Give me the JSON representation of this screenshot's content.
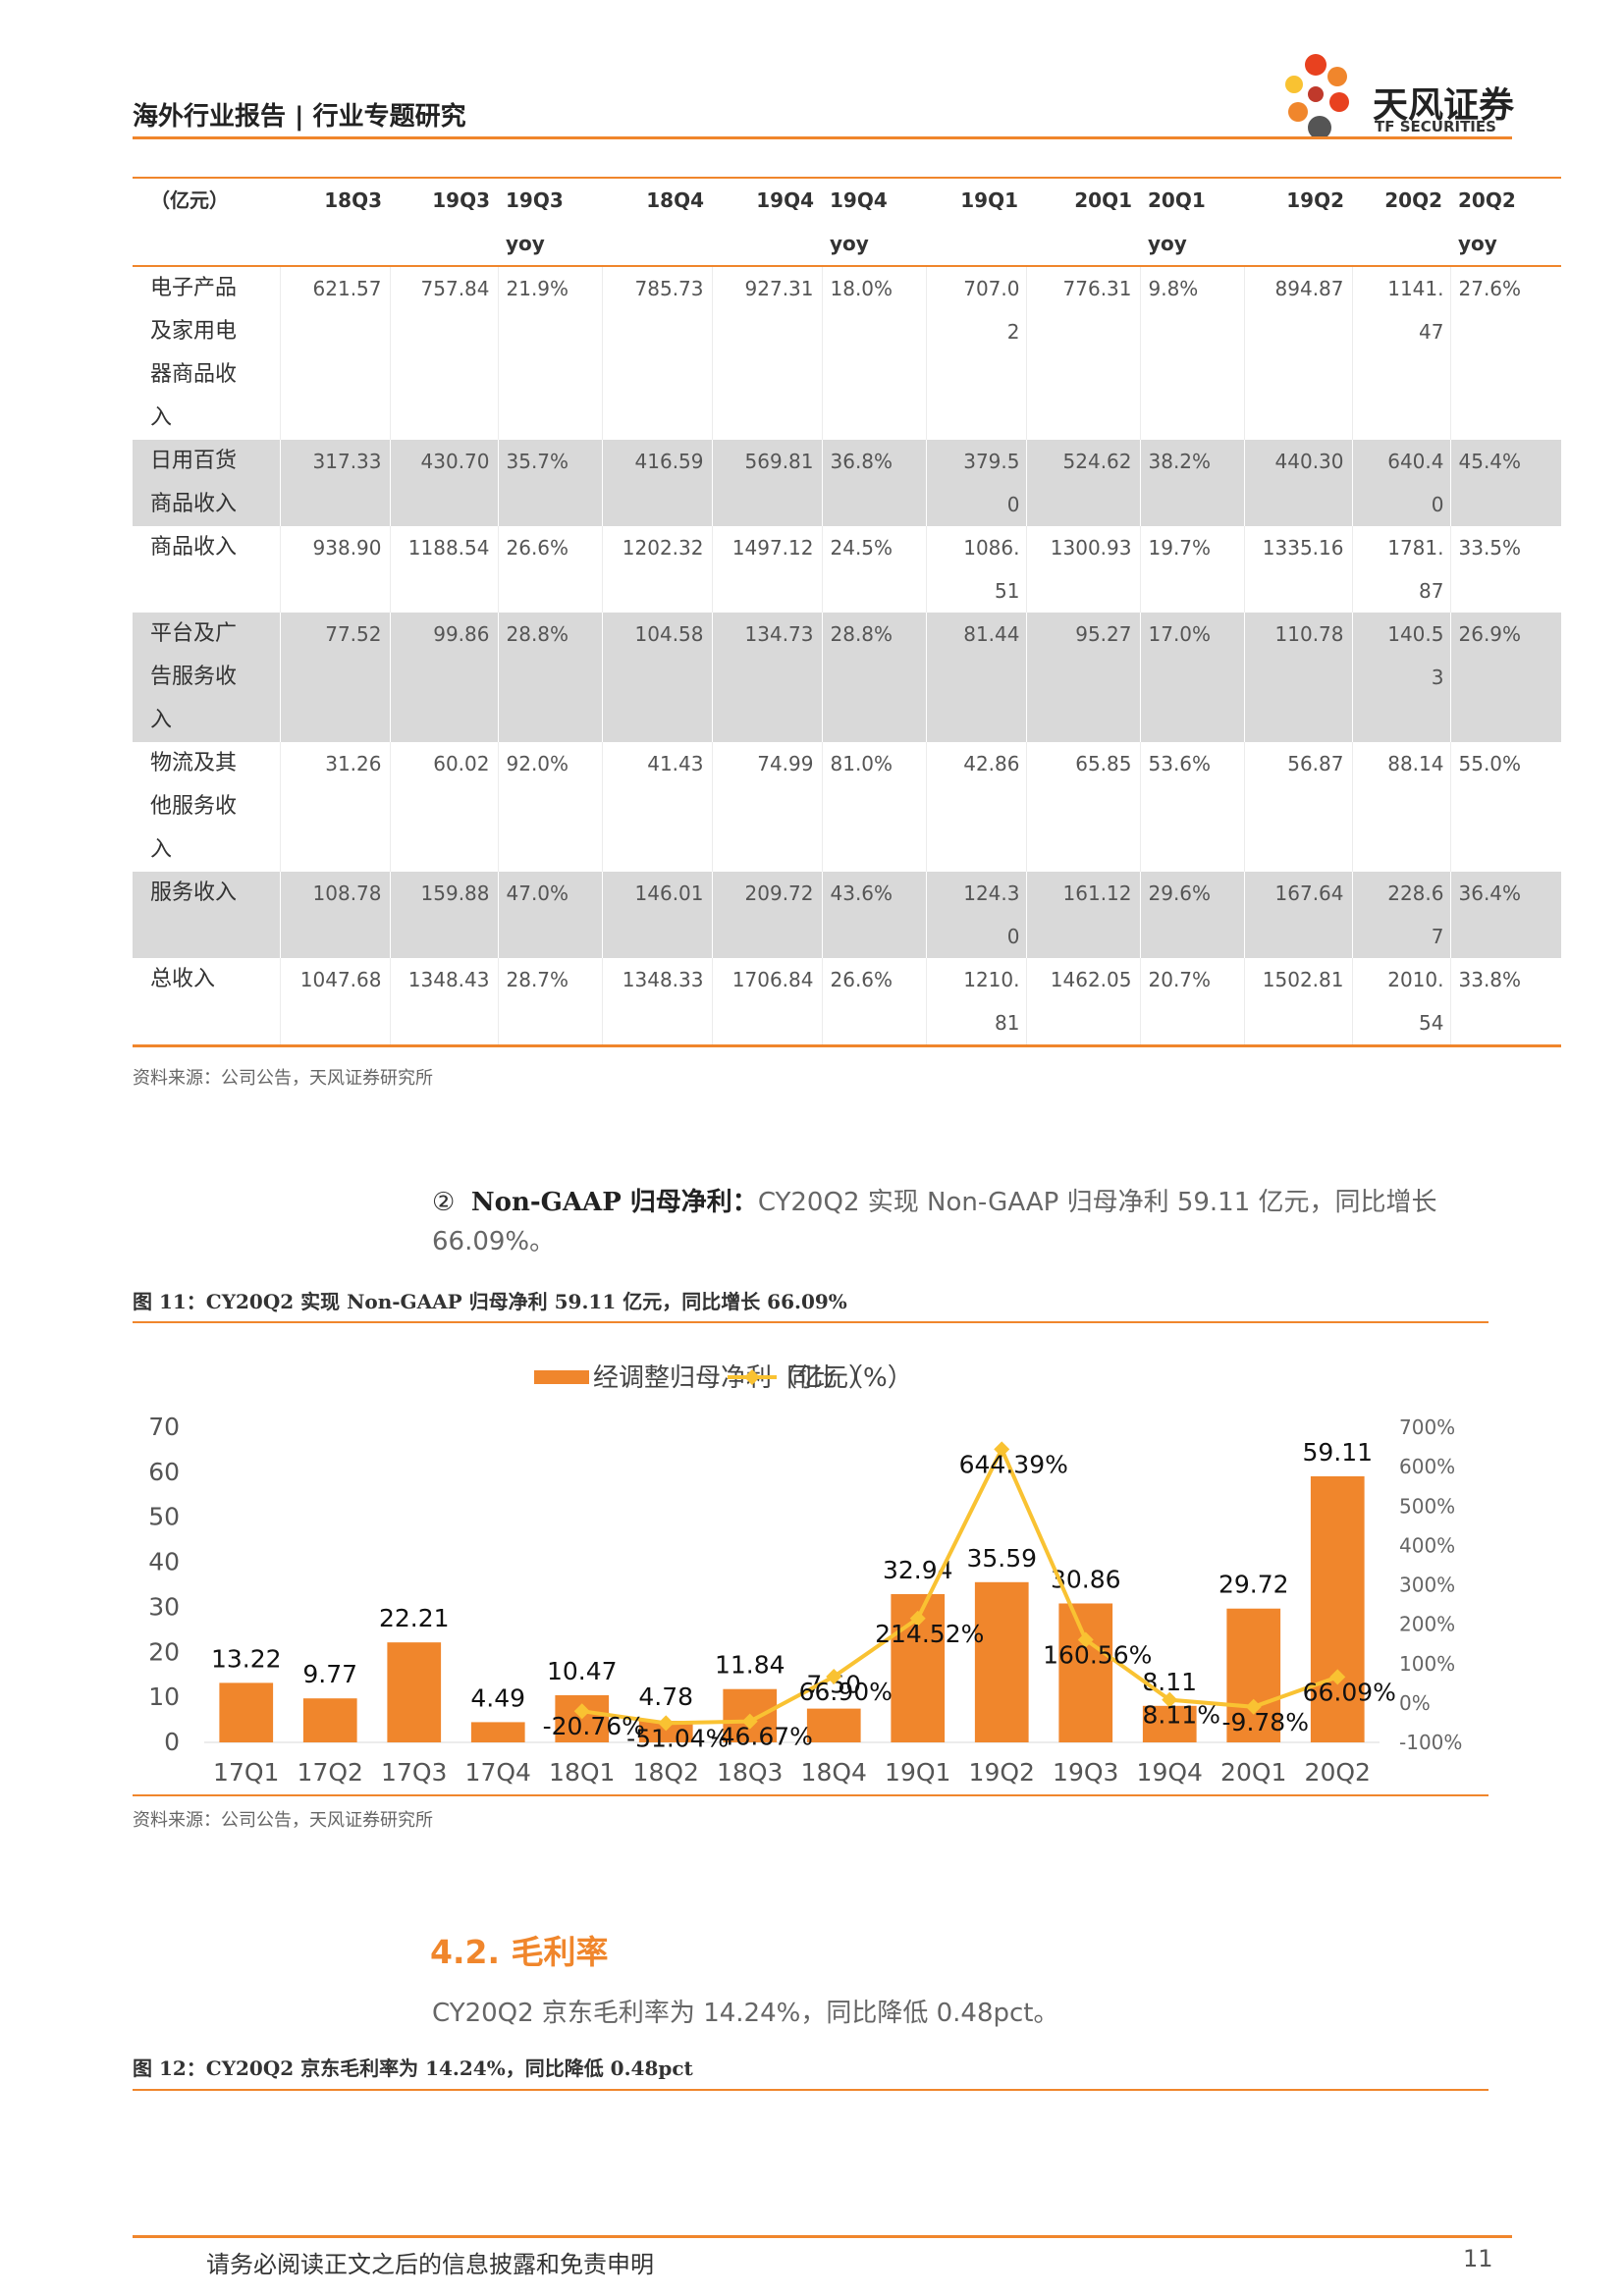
{
  "header": {
    "title": "海外行业报告 | 行业专题研究",
    "logo_name": "天风证券",
    "logo_sub": "TF SECURITIES"
  },
  "table": {
    "columns": [
      "（亿元）",
      "18Q3",
      "19Q3",
      "19Q3 yoy",
      "18Q4",
      "19Q4",
      "19Q4 yoy",
      "19Q1",
      "20Q1",
      "20Q1 yoy",
      "19Q2",
      "20Q2",
      "20Q2 yoy"
    ],
    "rows": [
      [
        "电子产品及家用电器商品收入",
        "621.57",
        "757.84",
        "21.9%",
        "785.73",
        "927.31",
        "18.0%",
        "707.02",
        "776.31",
        "9.8%",
        "894.87",
        "1141.47",
        "27.6%"
      ],
      [
        "日用百货商品收入",
        "317.33",
        "430.70",
        "35.7%",
        "416.59",
        "569.81",
        "36.8%",
        "379.50",
        "524.62",
        "38.2%",
        "440.30",
        "640.40",
        "45.4%"
      ],
      [
        "商品收入",
        "938.90",
        "1188.54",
        "26.6%",
        "1202.32",
        "1497.12",
        "24.5%",
        "1086.51",
        "1300.93",
        "19.7%",
        "1335.16",
        "1781.87",
        "33.5%"
      ],
      [
        "平台及广告服务收入",
        "77.52",
        "99.86",
        "28.8%",
        "104.58",
        "134.73",
        "28.8%",
        "81.44",
        "95.27",
        "17.0%",
        "110.78",
        "140.53",
        "26.9%"
      ],
      [
        "物流及其他服务收入",
        "31.26",
        "60.02",
        "92.0%",
        "41.43",
        "74.99",
        "81.0%",
        "42.86",
        "65.85",
        "53.6%",
        "56.87",
        "88.14",
        "55.0%"
      ],
      [
        "服务收入",
        "108.78",
        "159.88",
        "47.0%",
        "146.01",
        "209.72",
        "43.6%",
        "124.30",
        "161.12",
        "29.6%",
        "167.64",
        "228.67",
        "36.4%"
      ],
      [
        "总收入",
        "1047.68",
        "1348.43",
        "28.7%",
        "1348.33",
        "1706.84",
        "26.6%",
        "1210.81",
        "1462.05",
        "20.7%",
        "1502.81",
        "2010.54",
        "33.8%"
      ]
    ]
  },
  "table_source": "资料来源：公司公告，天风证券研究所",
  "paragraph1": {
    "marker": "②",
    "lead": "Non-GAAP 归母净利：",
    "text": "CY20Q2 实现 Non-GAAP 归母净利 59.11 亿元，同比增长 66.09%。"
  },
  "figure11_caption": "图 11：CY20Q2 实现 Non-GAAP 归母净利 59.11 亿元，同比增长 66.09%",
  "chart_data": {
    "type": "bar",
    "categories": [
      "17Q1",
      "17Q2",
      "17Q3",
      "17Q4",
      "18Q1",
      "18Q2",
      "18Q3",
      "18Q4",
      "19Q1",
      "19Q2",
      "19Q3",
      "19Q4",
      "20Q1",
      "20Q2"
    ],
    "series": [
      {
        "name": "经调整归母净利（亿元）",
        "type": "bar",
        "color": "#f0862c",
        "values": [
          13.22,
          9.77,
          22.21,
          4.49,
          10.47,
          4.78,
          11.84,
          7.5,
          32.94,
          35.59,
          30.86,
          8.11,
          29.72,
          59.11
        ],
        "value_labels": [
          "13.22",
          "9.77",
          "22.21",
          "4.49",
          "10.47",
          "4.78",
          "11.84",
          "7.50",
          "32.94",
          "35.59",
          "30.86",
          "8.11",
          "29.72",
          "59.11"
        ]
      },
      {
        "name": "同比（%）",
        "type": "line",
        "axis": "y2",
        "color": "#f9c232",
        "values": [
          null,
          null,
          null,
          null,
          -20.76,
          -51.04,
          -46.67,
          66.9,
          214.52,
          644.39,
          160.56,
          8.11,
          -9.78,
          66.09
        ],
        "value_labels": [
          null,
          null,
          null,
          null,
          "-20.76%",
          "-51.04%",
          "-46.67%",
          "66.90%",
          "214.52%",
          "644.39%",
          "160.56%",
          "8.11%",
          "-9.78%",
          "66.09%"
        ]
      }
    ],
    "ylim": [
      0,
      70
    ],
    "yticks": [
      0,
      10,
      20,
      30,
      40,
      50,
      60,
      70
    ],
    "y2lim": [
      -100,
      700
    ],
    "y2ticks": [
      {
        "value": -100,
        "label": "-100%"
      },
      {
        "value": 0,
        "label": "0%"
      },
      {
        "value": 100,
        "label": "100%"
      },
      {
        "value": 200,
        "label": "200%"
      },
      {
        "value": 300,
        "label": "300%"
      },
      {
        "value": 400,
        "label": "400%"
      },
      {
        "value": 500,
        "label": "500%"
      },
      {
        "value": 600,
        "label": "600%"
      },
      {
        "value": 700,
        "label": "700%"
      }
    ],
    "legend": "top"
  },
  "figure11_source": "资料来源：公司公告，天风证券研究所",
  "section_heading": "4.2. 毛利率",
  "paragraph2": "CY20Q2 京东毛利率为 14.24%，同比降低 0.48pct。",
  "figure12_caption": "图 12：CY20Q2 京东毛利率为 14.24%，同比降低 0.48pct",
  "footer": {
    "disclaimer": "请务必阅读正文之后的信息披露和免责申明",
    "page": "11"
  }
}
